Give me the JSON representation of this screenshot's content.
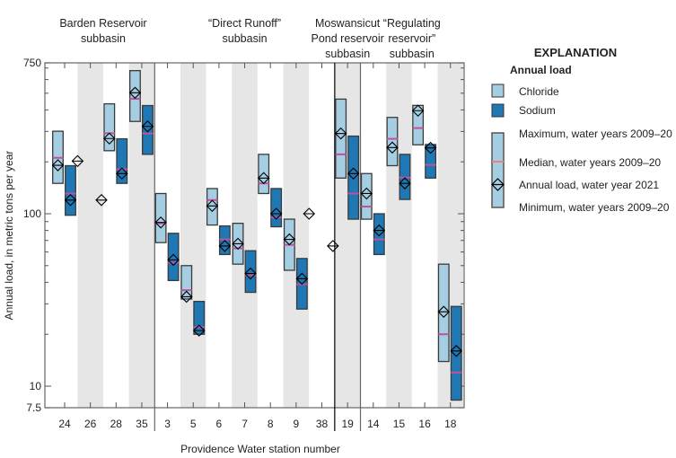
{
  "chart_data": {
    "type": "bar",
    "xlabel": "Providence Water station number",
    "ylabel": "Annual load, in metric tons per year",
    "yscale": "log",
    "ylim": [
      7.5,
      750
    ],
    "yticks": [
      "750",
      "100",
      "10",
      "7.5"
    ],
    "ytick_values": [
      750,
      100,
      10,
      7.5
    ],
    "groups": [
      {
        "label_lines": [
          "Barden Reservoir",
          "subbasin"
        ],
        "stations": [
          "24",
          "26",
          "28",
          "35"
        ]
      },
      {
        "label_lines": [
          "“Direct Runoff”",
          "subbasin"
        ],
        "stations": [
          "3",
          "5",
          "6",
          "7",
          "8",
          "9",
          "38"
        ]
      },
      {
        "label_lines": [
          "Moswansicut",
          "Pond reservoir",
          "subbasin"
        ],
        "stations": [
          "19"
        ]
      },
      {
        "label_lines": [
          "“Regulating",
          "reservoir”",
          "subbasin"
        ],
        "stations": [
          "14",
          "15",
          "16",
          "18"
        ]
      }
    ],
    "categories": [
      "24",
      "26",
      "28",
      "35",
      "3",
      "5",
      "6",
      "7",
      "8",
      "9",
      "38",
      "19",
      "14",
      "15",
      "16",
      "18"
    ],
    "series": [
      {
        "name": "Chloride",
        "color": "#a6cee3",
        "max": [
          301,
          null,
          434,
          676,
          131,
          50,
          140,
          88,
          221,
          93,
          null,
          462,
          171,
          362,
          425,
          51
        ],
        "median": [
          211,
          null,
          293,
          464,
          88,
          36,
          120,
          63,
          150,
          66,
          null,
          221,
          110,
          272,
          314,
          20
        ],
        "min": [
          150,
          null,
          232,
          343,
          68,
          32,
          86,
          51,
          131,
          47,
          null,
          161,
          93,
          190,
          251,
          13.9
        ],
        "wy2021": [
          191,
          202,
          273,
          503,
          89,
          33,
          111,
          67,
          161,
          71,
          100,
          292,
          131,
          242,
          396,
          27
        ]
      },
      {
        "name": "Sodium",
        "color": "#1f78b4",
        "max": [
          190,
          null,
          272,
          424,
          77,
          31,
          85,
          61,
          140,
          55,
          null,
          282,
          100,
          221,
          252,
          29
        ],
        "median": [
          131,
          null,
          181,
          292,
          52,
          22,
          71,
          44,
          95,
          39,
          null,
          131,
          71,
          162,
          192,
          12
        ],
        "min": [
          98,
          null,
          150,
          221,
          41,
          20,
          58,
          35,
          84,
          28,
          null,
          93,
          58,
          121,
          161,
          8.3
        ],
        "wy2021": [
          120,
          120,
          171,
          321,
          54,
          21,
          65,
          45,
          100,
          42,
          65,
          171,
          80,
          150,
          241,
          16
        ]
      }
    ],
    "shaded_stations": [
      "26",
      "35",
      "5",
      "7",
      "9",
      "19",
      "15",
      "18"
    ],
    "median_color": "#c0509e",
    "legend": {
      "title": "EXPLANATION",
      "subtitle": "Annual load",
      "chloride": "Chloride",
      "sodium": "Sodium",
      "maximum": "Maximum, water years 2009–20",
      "median": "Median, water years 2009–20",
      "annual": "Annual load, water year 2021",
      "minimum": "Minimum, water years 2009–20",
      "placement": "right"
    },
    "grid": false
  }
}
